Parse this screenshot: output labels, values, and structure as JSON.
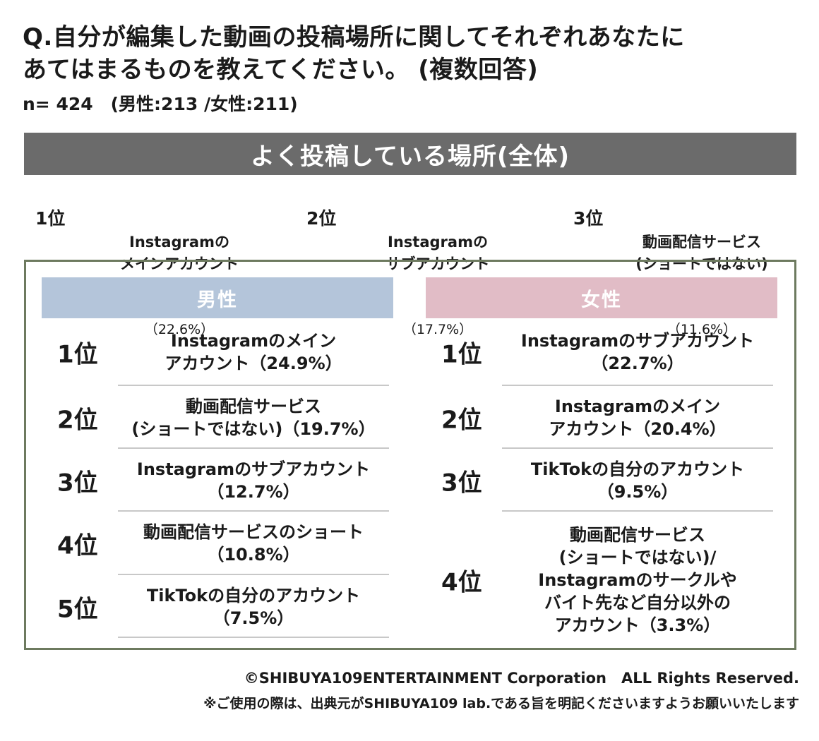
{
  "question": {
    "line1": "Q.自分が編集した動画の投稿場所に関してそれぞれあなたに",
    "line2": "あてはまるものを教えてください。 (複数回答)",
    "sample": "n= 424　(男性:213 /女性:211)"
  },
  "overall": {
    "title": "よく投稿している場所(全体)",
    "items": [
      {
        "rank": "1位",
        "text": "Instagramの\nメインアカウント",
        "pct": "（22.6%）"
      },
      {
        "rank": "2位",
        "text": "Instagramの\nサブアカウント",
        "pct": "（17.7%）"
      },
      {
        "rank": "3位",
        "text": "動画配信サービス\n(ショートではない)",
        "pct": "（11.6%）"
      }
    ]
  },
  "male": {
    "label": "男性",
    "items": [
      {
        "rank": "1位",
        "text": "Instagramのメイン\nアカウント（24.9%）"
      },
      {
        "rank": "2位",
        "text": "動画配信サービス\n(ショートではない)（19.7%）"
      },
      {
        "rank": "3位",
        "text": "Instagramのサブアカウント\n（12.7%）"
      },
      {
        "rank": "4位",
        "text": "動画配信サービスのショート\n（10.8%）"
      },
      {
        "rank": "5位",
        "text": "TikTokの自分のアカウント\n（7.5%）"
      }
    ]
  },
  "female": {
    "label": "女性",
    "items": [
      {
        "rank": "1位",
        "text": "Instagramのサブアカウント\n（22.7%）"
      },
      {
        "rank": "2位",
        "text": "Instagramのメイン\nアカウント（20.4%）"
      },
      {
        "rank": "3位",
        "text": "TikTokの自分のアカウント\n（9.5%）"
      },
      {
        "rank": "4位",
        "text": "動画配信サービス\n(ショートではない)/\nInstagramのサークルや\nバイト先など自分以外の\nアカウント（3.3%）"
      }
    ]
  },
  "footer": {
    "copyright": "©SHIBUYA109ENTERTAINMENT Corporation　ALL Rights Reserved.",
    "notice": "※ご使用の際は、出典元がSHIBUYA109 lab.である旨を明記くださいますようお願いいたします"
  }
}
